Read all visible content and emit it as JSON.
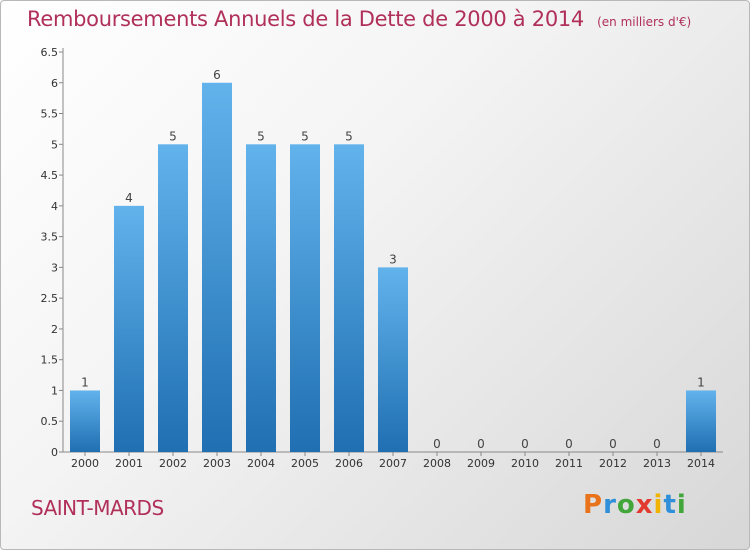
{
  "title": "Remboursements Annuels de la Dette de 2000 à 2014",
  "subtitle": "(en milliers d'€)",
  "commune": "SAINT-MARDS",
  "logo": {
    "letters": [
      "P",
      "r",
      "o",
      "x",
      "i",
      "t",
      "i"
    ],
    "colors": [
      "#e8731a",
      "#2f8fd8",
      "#43a63a",
      "#e23a2e",
      "#f0b400",
      "#2f8fd8",
      "#43a63a"
    ]
  },
  "colors": {
    "bar_top": "#62b3ec",
    "bar_bottom": "#1f6fb2",
    "title": "#b0305a"
  },
  "chart_data": {
    "type": "bar",
    "categories": [
      "2000",
      "2001",
      "2002",
      "2003",
      "2004",
      "2005",
      "2006",
      "2007",
      "2008",
      "2009",
      "2010",
      "2011",
      "2012",
      "2013",
      "2014"
    ],
    "values": [
      1,
      4,
      5,
      6,
      5,
      5,
      5,
      3,
      0,
      0,
      0,
      0,
      0,
      0,
      1
    ],
    "data_labels": [
      "1",
      "4",
      "5",
      "6",
      "5",
      "5",
      "5",
      "3",
      "0",
      "0",
      "0",
      "0",
      "0",
      "0",
      "1"
    ],
    "yticks": [
      "0",
      "0.5",
      "1",
      "1.5",
      "2",
      "2.5",
      "3",
      "3.5",
      "4",
      "4.5",
      "5",
      "5.5",
      "6",
      "6.5"
    ],
    "ylim": [
      0,
      6.5
    ],
    "grid": false,
    "title": "Remboursements Annuels de la Dette de 2000 à 2014",
    "xlabel": "",
    "ylabel": ""
  }
}
